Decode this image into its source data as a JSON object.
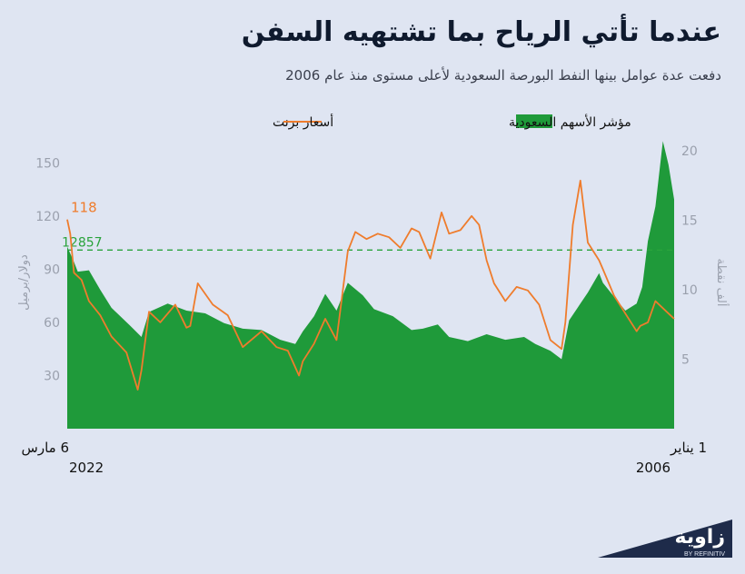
{
  "title": "عندما تأتي الرياح بما تشتهيه السفن",
  "subtitle": "دفعت عدة عوامل بينها النفط البورصة السعودية لأعلى مستوى منذ عام 2006",
  "brand": {
    "name": "زاوية",
    "sub": "BY REFINITIV"
  },
  "chart_data": {
    "type": "area",
    "title": "عندما تأتي الرياح بما تشتهيه السفن",
    "x_direction": "right-to-left",
    "x_ticks": [
      {
        "label_line1": "1 يناير",
        "label_line2": "2006",
        "pos": "right"
      },
      {
        "label_line1": "6 مارس",
        "label_line2": "2022",
        "pos": "left"
      }
    ],
    "left_axis": {
      "label": "دولار/برميل",
      "ticks": [
        30,
        60,
        90,
        120,
        150
      ],
      "ylim": [
        0,
        165
      ]
    },
    "right_axis": {
      "label": "ألف نقطة",
      "ticks": [
        5,
        10,
        15,
        20
      ],
      "ylim": [
        0,
        21.05
      ]
    },
    "reference_line": {
      "value": 12857,
      "label": "12857",
      "axis": "right",
      "value_thousands": 12.857,
      "color": "#2aa33c"
    },
    "annotation": {
      "label": "118",
      "series": "أسعار برنت",
      "color": "#ef7c2c"
    },
    "legend_position": "top",
    "colors": {
      "index_fill": "#1f9a3a",
      "brent_line": "#ef7c2c",
      "axis_text": "#9aa0ad",
      "ref_line": "#2aa33c"
    },
    "series": [
      {
        "name": "مؤشر الأسهم السعودية",
        "kind": "area",
        "axis": "right",
        "unit": "ألف نقطة",
        "dates": [
          2006.0,
          2006.15,
          2006.3,
          2006.5,
          2006.7,
          2006.85,
          2007.0,
          2007.3,
          2007.6,
          2007.9,
          2008.0,
          2008.3,
          2008.5,
          2008.8,
          2009.0,
          2009.3,
          2009.7,
          2010.0,
          2010.5,
          2011.0,
          2011.5,
          2012.0,
          2012.3,
          2012.7,
          2013.0,
          2013.5,
          2014.0,
          2014.3,
          2014.7,
          2015.0,
          2015.3,
          2015.6,
          2015.9,
          2016.1,
          2016.5,
          2017.0,
          2017.5,
          2018.0,
          2018.5,
          2019.0,
          2019.5,
          2020.0,
          2020.2,
          2020.5,
          2021.0,
          2021.3,
          2021.6,
          2021.9,
          2022.0,
          2022.18
        ],
        "values": [
          16.5,
          19.0,
          20.7,
          16.0,
          13.5,
          10.2,
          9.0,
          8.5,
          9.5,
          10.5,
          11.2,
          9.8,
          9.0,
          7.8,
          5.0,
          5.6,
          6.1,
          6.6,
          6.4,
          6.8,
          6.3,
          6.6,
          7.5,
          7.2,
          7.1,
          8.1,
          8.6,
          9.6,
          10.5,
          8.5,
          9.7,
          8.1,
          7.0,
          6.1,
          6.4,
          7.1,
          7.2,
          7.6,
          8.3,
          8.5,
          9.0,
          8.4,
          6.6,
          7.4,
          8.7,
          10.0,
          11.4,
          11.3,
          12.0,
          13.1
        ]
      },
      {
        "name": "أسعار برنت",
        "kind": "line",
        "axis": "left",
        "unit": "دولار/برميل",
        "dates": [
          2006.0,
          2006.2,
          2006.5,
          2006.7,
          2006.9,
          2007.0,
          2007.3,
          2007.6,
          2007.9,
          2008.0,
          2008.3,
          2008.5,
          2008.7,
          2008.9,
          2009.0,
          2009.3,
          2009.6,
          2009.9,
          2010.2,
          2010.5,
          2010.8,
          2011.0,
          2011.2,
          2011.4,
          2011.7,
          2012.0,
          2012.2,
          2012.5,
          2012.8,
          2013.0,
          2013.3,
          2013.6,
          2013.9,
          2014.2,
          2014.5,
          2014.7,
          2015.0,
          2015.3,
          2015.6,
          2015.9,
          2016.0,
          2016.3,
          2016.6,
          2017.0,
          2017.5,
          2017.9,
          2018.3,
          2018.7,
          2018.9,
          2019.0,
          2019.3,
          2019.7,
          2020.0,
          2020.2,
          2020.3,
          2020.6,
          2021.0,
          2021.3,
          2021.6,
          2021.8,
          2022.0,
          2022.1,
          2022.18
        ],
        "values": [
          62,
          66,
          72,
          60,
          58,
          55,
          65,
          75,
          90,
          95,
          105,
          140,
          115,
          60,
          45,
          50,
          70,
          78,
          80,
          72,
          82,
          95,
          115,
          120,
          112,
          110,
          122,
          96,
          111,
          113,
          102,
          108,
          110,
          107,
          111,
          100,
          50,
          62,
          48,
          38,
          30,
          44,
          46,
          55,
          46,
          64,
          70,
          82,
          58,
          57,
          70,
          60,
          66,
          33,
          22,
          43,
          52,
          64,
          72,
          84,
          88,
          110,
          118
        ]
      }
    ]
  }
}
